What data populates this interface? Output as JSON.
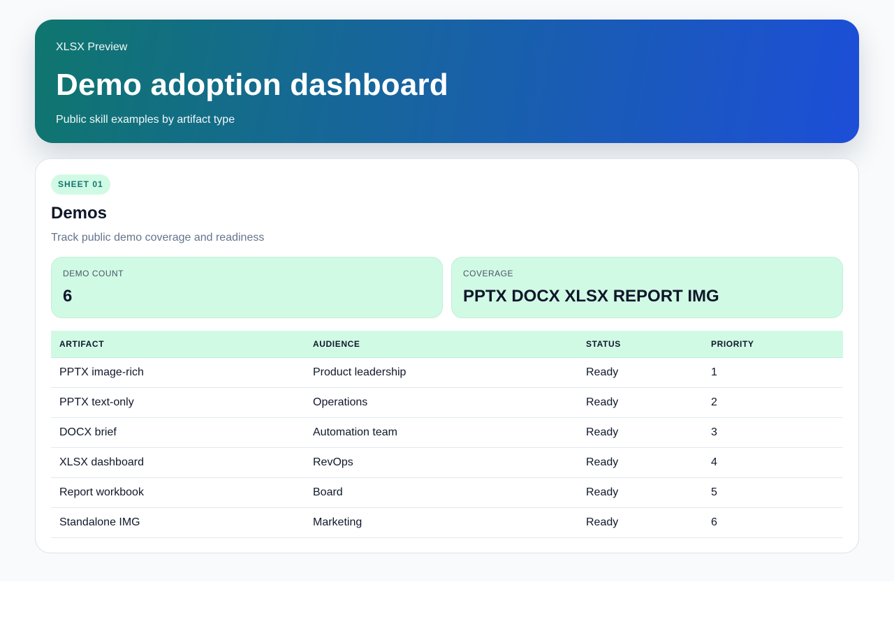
{
  "hero": {
    "eyebrow": "XLSX Preview",
    "title": "Demo adoption dashboard",
    "subtitle": "Public skill examples by artifact type"
  },
  "sheet": {
    "badge": "SHEET 01",
    "title": "Demos",
    "description": "Track public demo coverage and readiness"
  },
  "stats": [
    {
      "label": "DEMO COUNT",
      "value": "6"
    },
    {
      "label": "COVERAGE",
      "value": "PPTX DOCX XLSX REPORT IMG"
    }
  ],
  "table": {
    "headers": [
      "ARTIFACT",
      "AUDIENCE",
      "STATUS",
      "PRIORITY"
    ],
    "rows": [
      [
        "PPTX image-rich",
        "Product leadership",
        "Ready",
        "1"
      ],
      [
        "PPTX text-only",
        "Operations",
        "Ready",
        "2"
      ],
      [
        "DOCX brief",
        "Automation team",
        "Ready",
        "3"
      ],
      [
        "XLSX dashboard",
        "RevOps",
        "Ready",
        "4"
      ],
      [
        "Report workbook",
        "Board",
        "Ready",
        "5"
      ],
      [
        "Standalone IMG",
        "Marketing",
        "Ready",
        "6"
      ]
    ]
  },
  "colors": {
    "accent_start": "#0f766e",
    "accent_end": "#1d4ed8",
    "mint": "#d1fae5"
  }
}
